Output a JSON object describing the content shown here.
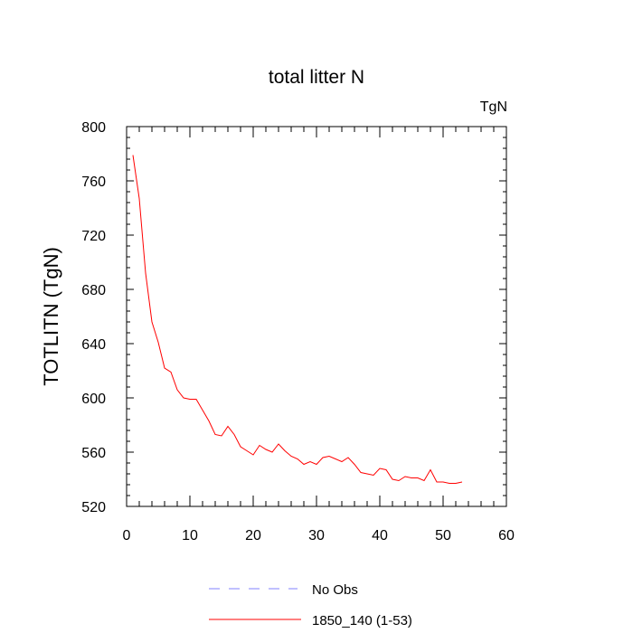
{
  "chart_data": {
    "type": "line",
    "title": "total litter N",
    "units_label": "TgN",
    "ylabel": "TOTLITN  (TgN)",
    "xlabel": "",
    "xlim": [
      0,
      60
    ],
    "ylim": [
      520,
      800
    ],
    "x_ticks": [
      0,
      10,
      20,
      30,
      40,
      50,
      60
    ],
    "y_ticks": [
      520,
      560,
      600,
      640,
      680,
      720,
      760,
      800
    ],
    "x_tick_labels": [
      "0",
      "10",
      "20",
      "30",
      "40",
      "50",
      "60"
    ],
    "y_tick_labels": [
      "520",
      "560",
      "600",
      "640",
      "680",
      "720",
      "760",
      "800"
    ],
    "grid": false,
    "legend_position": "bottom",
    "series": [
      {
        "name": "No Obs",
        "color": "#8080ff",
        "dash": "dashed",
        "x": [],
        "values": []
      },
      {
        "name": "1850_140 (1-53)",
        "color": "#ff0000",
        "dash": "solid",
        "x": [
          1,
          2,
          3,
          4,
          5,
          6,
          7,
          8,
          9,
          10,
          11,
          12,
          13,
          14,
          15,
          16,
          17,
          18,
          19,
          20,
          21,
          22,
          23,
          24,
          25,
          26,
          27,
          28,
          29,
          30,
          31,
          32,
          33,
          34,
          35,
          36,
          37,
          38,
          39,
          40,
          41,
          42,
          43,
          44,
          45,
          46,
          47,
          48,
          49,
          50,
          51,
          52,
          53
        ],
        "values": [
          779,
          747,
          692,
          656,
          641,
          622,
          619,
          606,
          600,
          599,
          599,
          591,
          583,
          573,
          572,
          579,
          573,
          564,
          561,
          558,
          565,
          562,
          560,
          566,
          561,
          557,
          555,
          551,
          553,
          551,
          556,
          557,
          555,
          553,
          556,
          551,
          545,
          544,
          543,
          548,
          547,
          540,
          539,
          542,
          541,
          541,
          539,
          547,
          538,
          538,
          537,
          537,
          538
        ]
      }
    ]
  }
}
